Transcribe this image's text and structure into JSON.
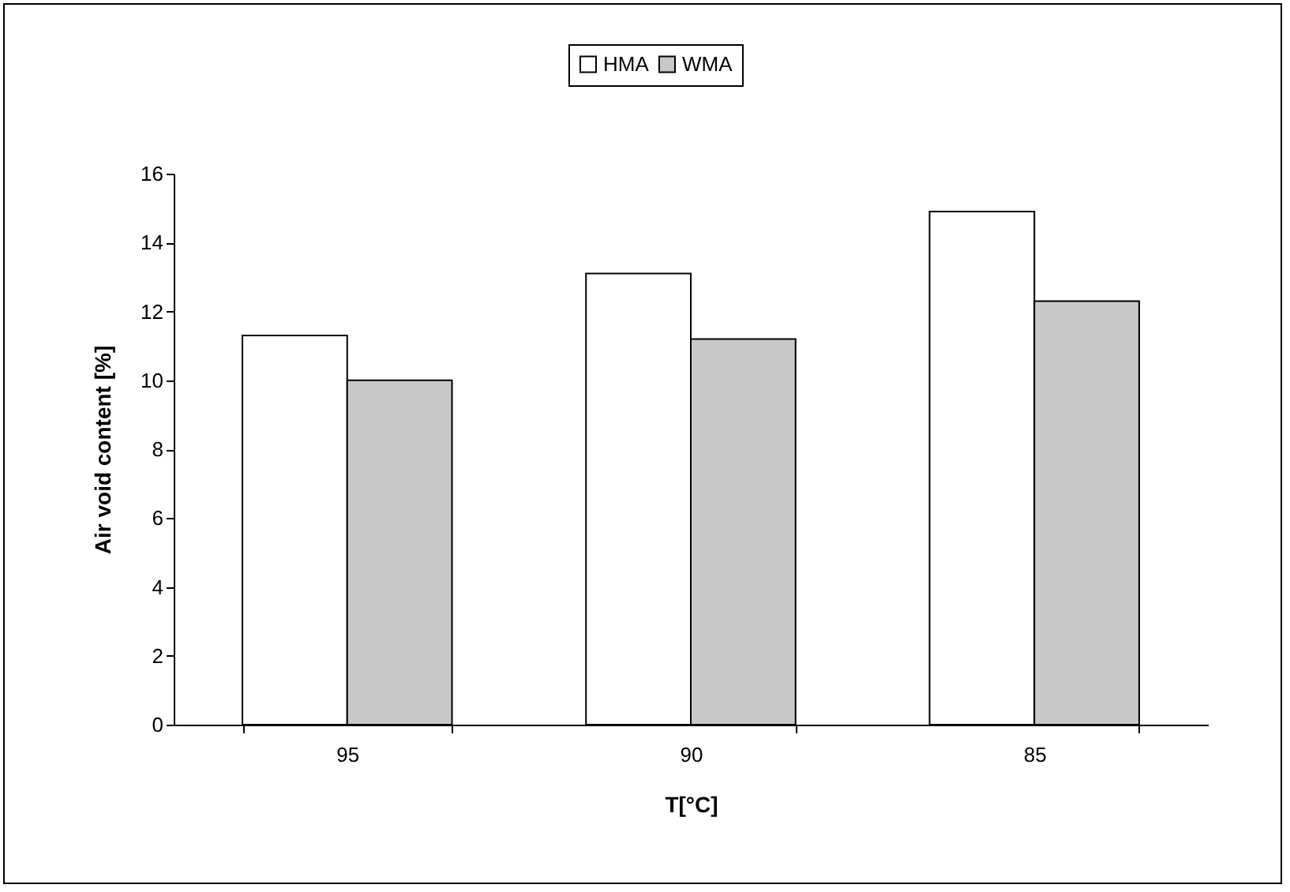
{
  "chart_data": {
    "type": "bar",
    "xlabel": "T[°C]",
    "ylabel": "Air void content [%]",
    "categories": [
      "95",
      "90",
      "85"
    ],
    "series": [
      {
        "name": "HMA",
        "color": "#ffffff",
        "values": [
          11.3,
          13.1,
          14.9
        ]
      },
      {
        "name": "WMA",
        "color": "#c8c8c8",
        "values": [
          10.0,
          11.2,
          12.3
        ]
      }
    ],
    "ylim": [
      0,
      16
    ],
    "yticks": [
      0,
      2,
      4,
      6,
      8,
      10,
      12,
      14,
      16
    ],
    "grid": false,
    "legend": "top"
  }
}
